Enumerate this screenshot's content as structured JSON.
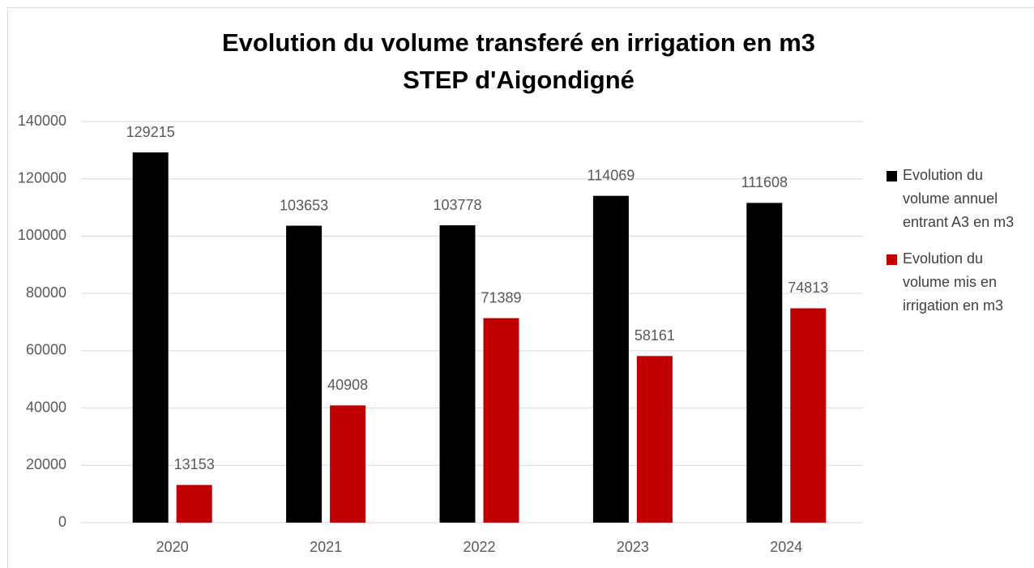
{
  "chart_data": {
    "type": "bar",
    "title": [
      "Evolution du volume transferé en irrigation en m3",
      "STEP d'Aigondigné"
    ],
    "categories": [
      "2020",
      "2021",
      "2022",
      "2023",
      "2024"
    ],
    "series": [
      {
        "name": "Evolution du volume annuel entrant A3 en m3",
        "color": "#000000",
        "values": [
          129215,
          103653,
          103778,
          114069,
          111608
        ]
      },
      {
        "name": "Evolution du volume mis en irrigation en m3",
        "color": "#c00000",
        "values": [
          13153,
          40908,
          71389,
          58161,
          74813
        ]
      }
    ],
    "ylim": [
      0,
      140000
    ],
    "yticks": [
      0,
      20000,
      40000,
      60000,
      80000,
      100000,
      120000,
      140000
    ],
    "grid": true,
    "legend": "right"
  }
}
